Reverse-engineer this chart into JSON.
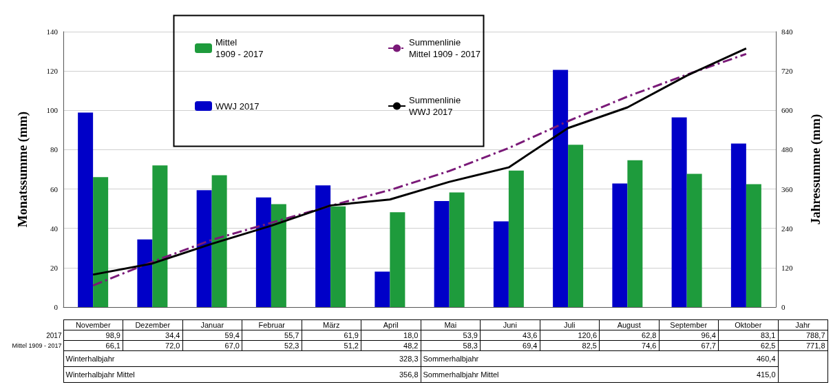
{
  "chart_data": {
    "type": "bar",
    "ylabel": "Monatssumme (mm)",
    "y2label": "Jahressumme (mm)",
    "categories": [
      "November",
      "Dezember",
      "Januar",
      "Februar",
      "März",
      "April",
      "Mai",
      "Juni",
      "Juli",
      "August",
      "September",
      "Oktober"
    ],
    "series": [
      {
        "name": "WWJ 2017",
        "color": "#0000c8",
        "values": [
          98.9,
          34.4,
          59.4,
          55.7,
          61.9,
          18.0,
          53.9,
          43.6,
          120.6,
          62.8,
          96.4,
          83.1
        ],
        "value_labels": [
          "98,9",
          "34,4",
          "59,4",
          "55,7",
          "61,9",
          "18,0",
          "53,9",
          "43,6",
          "120,6",
          "62,8",
          "96,4",
          "83,1"
        ]
      },
      {
        "name": "Mittel\n1909 - 2017",
        "color": "#1e9b3c",
        "values": [
          66.1,
          72.0,
          67.0,
          52.3,
          51.2,
          48.2,
          58.3,
          69.4,
          82.5,
          74.6,
          67.7,
          62.5
        ],
        "value_labels": [
          "66,1",
          "72,0",
          "67,0",
          "52,3",
          "51,2",
          "48,2",
          "58,3",
          "69,4",
          "82,5",
          "74,6",
          "67,7",
          "62,5"
        ]
      },
      {
        "name": "Summenlinie\nMittel 1909 - 2017",
        "type": "line",
        "axis": "y2",
        "line_style": "dashed",
        "color": "#7a1a78",
        "values": [
          66,
          138,
          205,
          257,
          309,
          357,
          415,
          485,
          567,
          642,
          709,
          772
        ]
      },
      {
        "name": "Summenlinie\nWWJ 2017",
        "type": "line",
        "axis": "y2",
        "line_style": "solid",
        "color": "#000000",
        "values": [
          99,
          133,
          193,
          248,
          310,
          328,
          382,
          426,
          546,
          609,
          706,
          789
        ]
      }
    ],
    "ylim": [
      0,
      140
    ],
    "yticks": [
      0,
      20,
      40,
      60,
      80,
      100,
      120,
      140
    ],
    "y2lim": [
      0,
      840
    ],
    "y2ticks": [
      0,
      120,
      240,
      360,
      480,
      600,
      720,
      840
    ],
    "grid": "y",
    "legend": "top left",
    "marker": "none",
    "annotations": [
      "2017",
      "Mittel 1909 - 2017",
      "Jahr",
      "788,7",
      "771,8",
      "Winterhalbjahr",
      "328,3",
      "Winterhalbjahr Mittel",
      "356,8",
      "Sommerhalbjahr",
      "460,4",
      "Sommerhalbjahr Mittel",
      "415,0"
    ]
  }
}
